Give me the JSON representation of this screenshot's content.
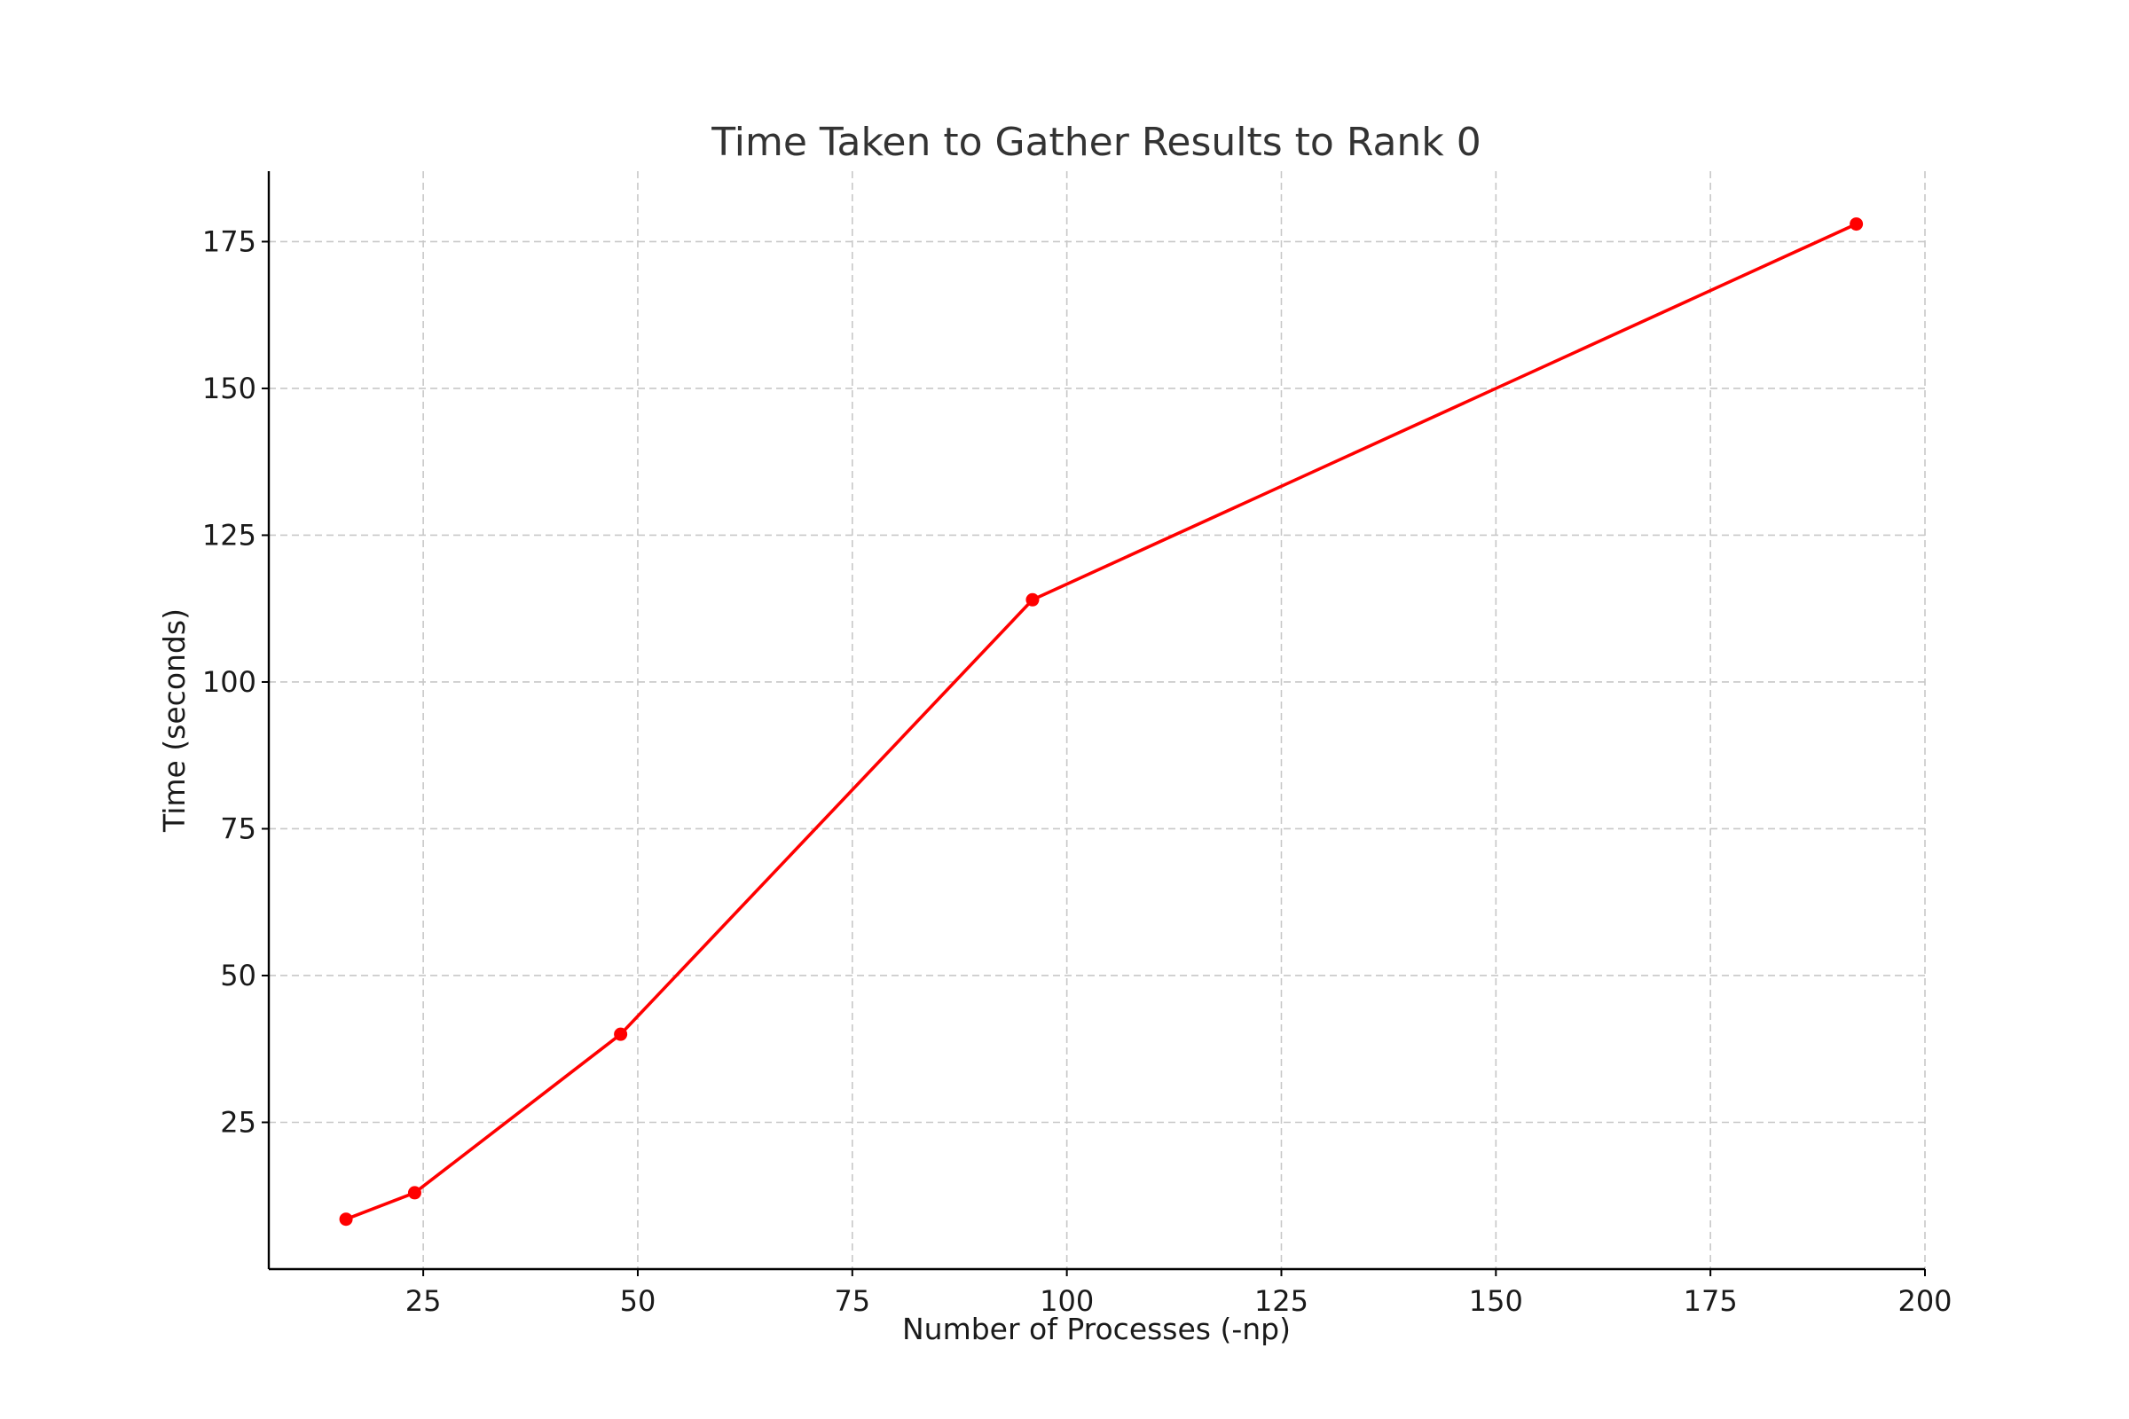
{
  "chart_data": {
    "type": "line",
    "title": "Time Taken to Gather Results to Rank 0",
    "xlabel": "Number of Processes (-np)",
    "ylabel": "Time (seconds)",
    "x": [
      16,
      24,
      48,
      96,
      192
    ],
    "series": [
      {
        "values": [
          8.5,
          13,
          40,
          114,
          178
        ],
        "color": "#ff0000",
        "marker": "circle"
      }
    ],
    "xlim": [
      7,
      200
    ],
    "ylim": [
      0,
      187
    ],
    "xticks": [
      25,
      50,
      75,
      100,
      125,
      150,
      175,
      200
    ],
    "yticks": [
      25,
      50,
      75,
      100,
      125,
      150,
      175
    ],
    "grid": true,
    "legend": "none"
  }
}
